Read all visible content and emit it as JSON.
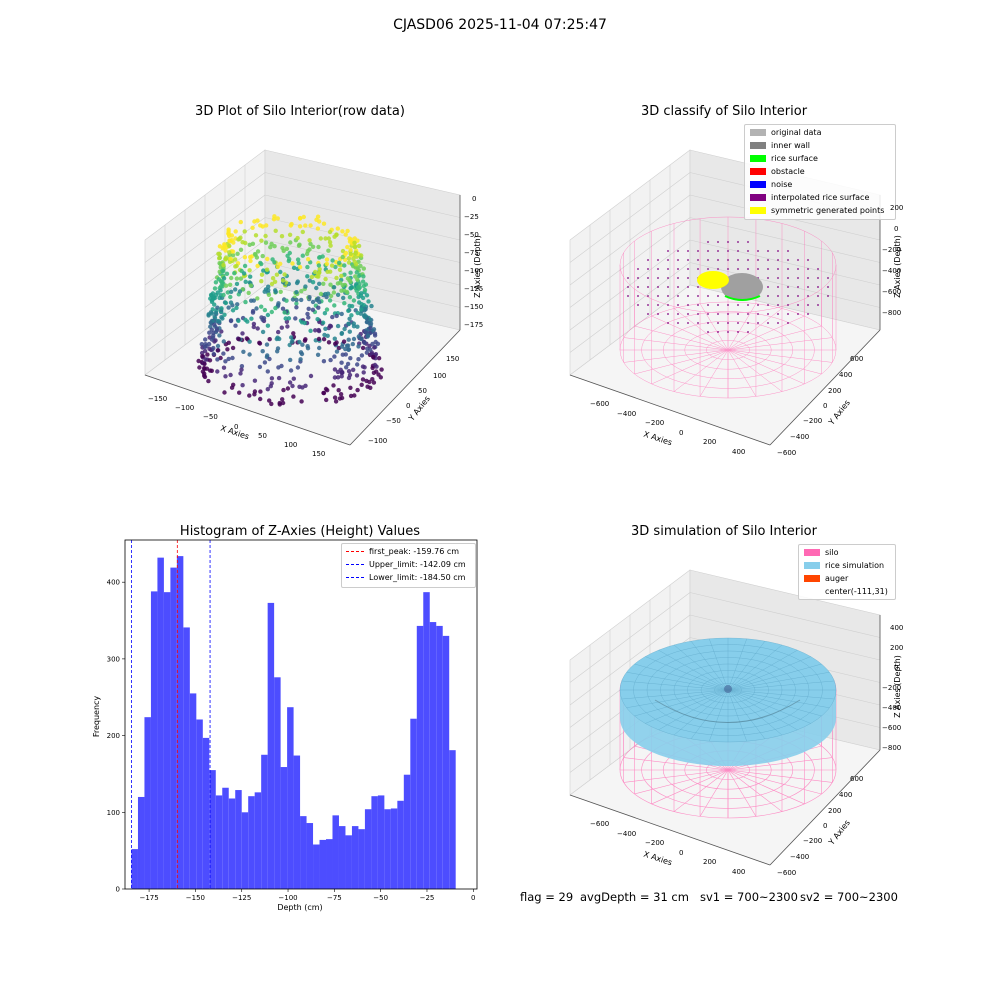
{
  "figure_title": "CJASD06 2025-11-04 07:25:47",
  "colors": {
    "hist_bar": "#4d4dff",
    "peak_line": "#ff0000",
    "limit_line": "#0000ff",
    "silo": "#ff69b4",
    "rice": "#87ceeb",
    "auger": "#ff4500"
  },
  "chart_data": [
    {
      "type": "scatter",
      "title": "3D Plot of Silo Interior(row data)",
      "xlabel": "X Axies",
      "ylabel": "Y Axies",
      "zlabel": "Z Axies (Depth)",
      "xticks": [
        "−150",
        "−100",
        "−50",
        "0",
        "50",
        "100",
        "150"
      ],
      "yticks": [
        "−100",
        "−50",
        "0",
        "50",
        "100",
        "150"
      ],
      "zticks": [
        "0",
        "−25",
        "−50",
        "−75",
        "−100",
        "−125",
        "−150",
        "−175"
      ],
      "colormap": "viridis"
    },
    {
      "type": "scatter",
      "title": "3D classify of Silo Interior",
      "xlabel": "X Axies",
      "ylabel": "Y Axies",
      "zlabel": "Z Axies (Depth)",
      "xticks": [
        "−600",
        "−400",
        "−200",
        "0",
        "200",
        "400"
      ],
      "yticks": [
        "−600",
        "−400",
        "−200",
        "0",
        "200",
        "400",
        "600"
      ],
      "zticks": [
        "200",
        "0",
        "−200",
        "−400",
        "−600",
        "−800"
      ],
      "legend_position": "upper-right",
      "legend": [
        {
          "label": "original data",
          "color": "#b3b3b3"
        },
        {
          "label": "inner wall",
          "color": "#808080"
        },
        {
          "label": "rice surface",
          "color": "#00ff00"
        },
        {
          "label": "obstacle",
          "color": "#ff0000"
        },
        {
          "label": "noise",
          "color": "#0000ff"
        },
        {
          "label": "interpolated rice surface",
          "color": "#800080"
        },
        {
          "label": "symmetric generated points",
          "color": "#ffff00"
        }
      ]
    },
    {
      "type": "bar",
      "title": "Histogram of Z-Axies (Height) Values",
      "xlabel": "Depth (cm)",
      "ylabel": "Frequency",
      "xlim": [
        -188,
        2
      ],
      "ylim": [
        0,
        455
      ],
      "xticks": [
        -175,
        -150,
        -125,
        -100,
        -75,
        -50,
        -25,
        0
      ],
      "yticks": [
        0,
        100,
        200,
        300,
        400
      ],
      "bin_start": -184.5,
      "bin_width": 3.5,
      "values": [
        52,
        120,
        224,
        388,
        432,
        387,
        419,
        434,
        341,
        255,
        221,
        197,
        155,
        122,
        132,
        118,
        129,
        100,
        121,
        126,
        175,
        373,
        276,
        159,
        237,
        174,
        95,
        86,
        58,
        64,
        65,
        96,
        82,
        70,
        82,
        78,
        104,
        121,
        122,
        104,
        105,
        115,
        149,
        222,
        343,
        387,
        348,
        343,
        330,
        181
      ],
      "vlines": [
        {
          "label": "first_peak: -159.76 cm",
          "x": -159.76,
          "color": "#ff0000"
        },
        {
          "label": "Upper_limit: -142.09 cm",
          "x": -142.09,
          "color": "#0000ff"
        },
        {
          "label": "Lower_limit: -184.50 cm",
          "x": -184.5,
          "color": "#0000ff"
        }
      ],
      "legend_position": "upper-right"
    },
    {
      "type": "surface",
      "title": "3D simulation of Silo Interior",
      "xlabel": "X Axies",
      "ylabel": "Y Axies",
      "zlabel": "Z Axies (Depth)",
      "xticks": [
        "−600",
        "−400",
        "−200",
        "0",
        "200",
        "400"
      ],
      "yticks": [
        "−600",
        "−400",
        "−200",
        "0",
        "200",
        "400",
        "600"
      ],
      "zticks": [
        "400",
        "200",
        "0",
        "−200",
        "−400",
        "−600",
        "−800"
      ],
      "legend_position": "upper-right",
      "legend": [
        {
          "label": "silo",
          "color": "#ff69b4"
        },
        {
          "label": "rice simulation",
          "color": "#87ceeb"
        },
        {
          "label": "auger",
          "color": "#ff4500"
        },
        {
          "label": "center(-111,31)",
          "color": ""
        }
      ]
    }
  ],
  "footer": {
    "flag": "flag = 29",
    "avg_depth": "avgDepth = 31 cm",
    "sv1": "sv1 = 700~2300",
    "sv2": "sv2 = 700~2300"
  }
}
